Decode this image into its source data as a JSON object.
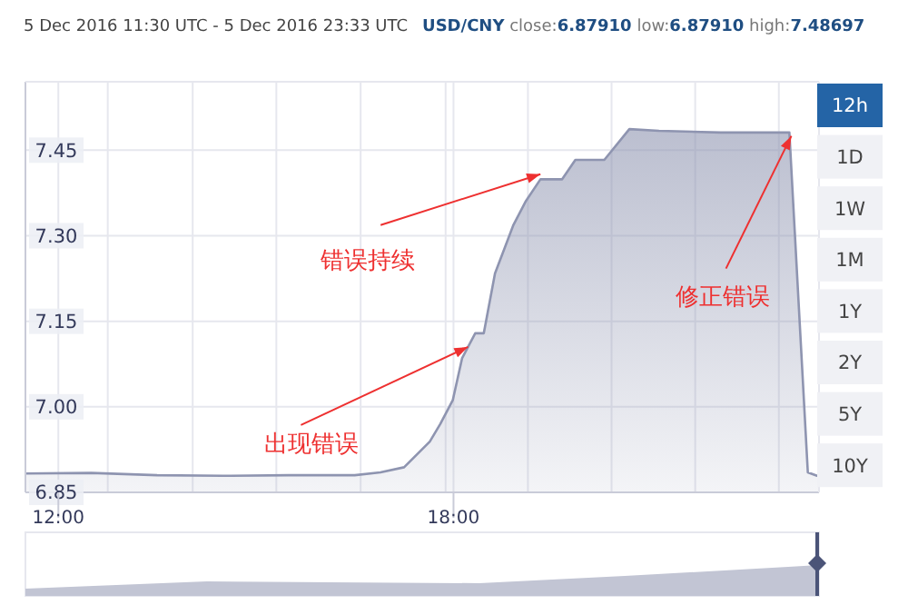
{
  "chart_data": {
    "type": "area",
    "title": "5 Dec 2016 11:30 UTC - 5 Dec 2016 23:33 UTC",
    "subtitle": "USD/CNY close:6.87910 low:6.87910 high:7.48697",
    "x": [
      11.5,
      12.5,
      13.5,
      14.5,
      15.5,
      16.5,
      16.89,
      17.25,
      17.64,
      17.8,
      17.99,
      18.13,
      18.33,
      18.46,
      18.63,
      18.91,
      19.1,
      19.32,
      19.65,
      19.85,
      20.29,
      20.67,
      21.12,
      22.06,
      22.77,
      23.1,
      23.38,
      23.52,
      23.55
    ],
    "series": [
      {
        "color": "#8e94b0",
        "values": [
          6.883,
          6.884,
          6.88,
          6.879,
          6.88,
          6.88,
          6.885,
          6.894,
          6.939,
          6.97,
          7.012,
          7.085,
          7.129,
          7.129,
          7.234,
          7.319,
          7.361,
          7.399,
          7.399,
          7.433,
          7.433,
          7.487,
          7.484,
          7.481,
          7.481,
          7.481,
          6.885,
          6.879,
          6.879
        ]
      }
    ],
    "xlim": [
      11.5,
      23.55
    ],
    "xticks": [
      {
        "value": 12,
        "label": "12:00"
      },
      {
        "value": 12.75,
        "label": null
      },
      {
        "value": 14.04,
        "label": null
      },
      {
        "value": 15.31,
        "label": null
      },
      {
        "value": 16.59,
        "label": null
      },
      {
        "value": 17.88,
        "label": null
      },
      {
        "value": 18,
        "label": "18:00"
      },
      {
        "value": 19.13,
        "label": null
      },
      {
        "value": 20.4,
        "label": null
      },
      {
        "value": 21.67,
        "label": null
      },
      {
        "value": 22.94,
        "label": null
      }
    ],
    "ylim": [
      6.85,
      7.57
    ],
    "yticks": [
      {
        "value": 6.85,
        "label": "6.85"
      },
      {
        "value": 7,
        "label": "7.00"
      },
      {
        "value": 7.15,
        "label": "7.15"
      },
      {
        "value": 7.3,
        "label": "7.30"
      },
      {
        "value": 7.45,
        "label": "7.45"
      }
    ],
    "grid": true,
    "annotations": [
      {
        "text": "出现错误",
        "x": 18.22,
        "y": 7.105
      },
      {
        "text": "错误持续",
        "x": 19.32,
        "y": 7.408
      },
      {
        "text": "修正错误",
        "x": 23.13,
        "y": 7.475
      },
      "12h",
      "1D",
      "1W",
      "1M",
      "1Y",
      "2Y",
      "5Y",
      "10Y"
    ]
  }
}
